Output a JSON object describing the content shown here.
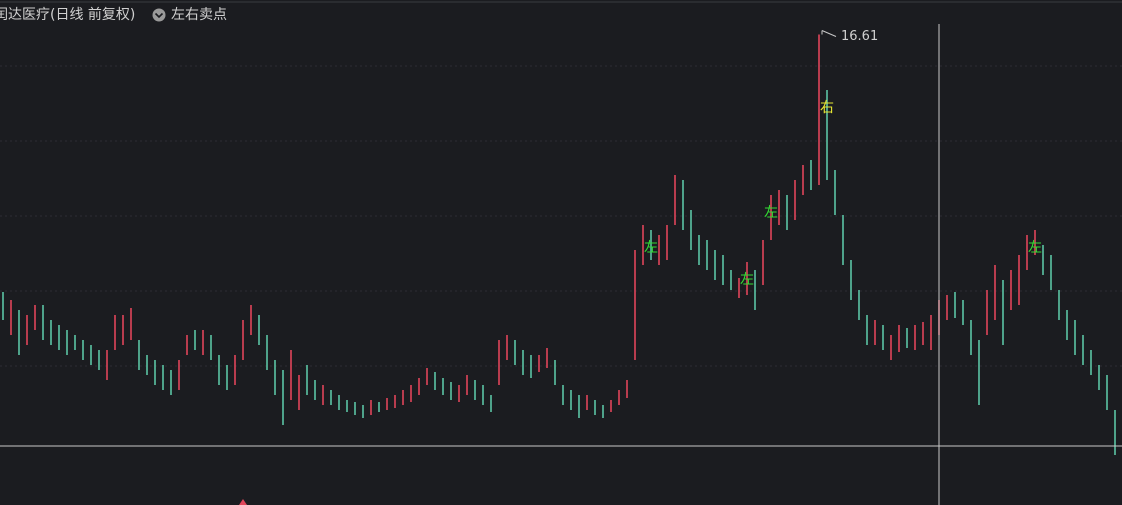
{
  "chart_data": {
    "type": "ohlc",
    "title": "闰达医疗(日线 前复权)",
    "subtitle": "左右卖点",
    "ylim": [
      7.2,
      17.3
    ],
    "up_color": "#e0455a",
    "down_color": "#5cc4a4",
    "highs": [
      11.46,
      11.3,
      11.1,
      11.0,
      11.2,
      11.2,
      10.9,
      10.8,
      10.7,
      10.6,
      10.5,
      10.4,
      10.3,
      10.3,
      11.0,
      11.0,
      11.14,
      10.5,
      10.2,
      10.1,
      10.0,
      9.9,
      10.1,
      10.6,
      10.7,
      10.7,
      10.6,
      10.2,
      10.0,
      10.2,
      10.9,
      11.2,
      11.0,
      10.6,
      10.1,
      9.9,
      10.3,
      9.8,
      10.0,
      9.7,
      9.6,
      9.5,
      9.4,
      9.3,
      9.26,
      9.2,
      9.3,
      9.26,
      9.34,
      9.4,
      9.5,
      9.6,
      9.74,
      9.94,
      9.86,
      9.74,
      9.66,
      9.6,
      9.8,
      9.7,
      9.6,
      9.4,
      10.5,
      10.6,
      10.5,
      10.3,
      10.2,
      10.2,
      10.34,
      10.1,
      9.6,
      9.5,
      9.4,
      9.4,
      9.3,
      9.2,
      9.3,
      9.5,
      9.7,
      12.3,
      12.8,
      12.7,
      12.6,
      12.8,
      13.8,
      13.7,
      13.1,
      12.6,
      12.5,
      12.3,
      12.2,
      11.9,
      11.74,
      12.06,
      11.9,
      12.5,
      13.4,
      13.5,
      13.4,
      13.7,
      14.0,
      14.1,
      16.61,
      15.5,
      13.9,
      13.0,
      12.1,
      11.5,
      11.0,
      10.9,
      10.8,
      10.6,
      10.8,
      10.74,
      10.8,
      10.86,
      11.0,
      11.3,
      11.4,
      11.46,
      11.3,
      10.9,
      10.5,
      11.5,
      12.0,
      11.7,
      11.9,
      12.2,
      12.6,
      12.7,
      12.4,
      12.2,
      11.5,
      11.1,
      10.9,
      10.6,
      10.3,
      10.0,
      9.8,
      9.1
    ],
    "lows": [
      10.9,
      10.6,
      10.2,
      10.4,
      10.7,
      10.5,
      10.4,
      10.3,
      10.2,
      10.3,
      10.1,
      10.0,
      9.9,
      9.7,
      10.3,
      10.4,
      10.5,
      9.9,
      9.8,
      9.6,
      9.5,
      9.4,
      9.5,
      10.2,
      10.3,
      10.2,
      10.1,
      9.6,
      9.5,
      9.6,
      10.1,
      10.6,
      10.4,
      9.9,
      9.4,
      8.8,
      9.3,
      9.1,
      9.4,
      9.3,
      9.2,
      9.2,
      9.1,
      9.06,
      9.0,
      8.94,
      9.0,
      9.06,
      9.1,
      9.14,
      9.2,
      9.26,
      9.4,
      9.6,
      9.5,
      9.4,
      9.3,
      9.26,
      9.4,
      9.3,
      9.2,
      9.06,
      9.6,
      10.1,
      10.0,
      9.8,
      9.74,
      9.86,
      9.94,
      9.6,
      9.2,
      9.1,
      8.94,
      9.1,
      9.0,
      8.94,
      9.06,
      9.2,
      9.34,
      10.1,
      12.0,
      12.1,
      12.0,
      12.1,
      12.8,
      12.7,
      12.3,
      12.0,
      11.9,
      11.7,
      11.6,
      11.5,
      11.34,
      11.4,
      11.1,
      11.6,
      12.5,
      12.8,
      12.7,
      12.9,
      13.4,
      13.5,
      13.6,
      13.7,
      13.0,
      12.0,
      11.3,
      10.9,
      10.4,
      10.4,
      10.3,
      10.1,
      10.26,
      10.34,
      10.3,
      10.4,
      10.3,
      10.6,
      10.9,
      10.94,
      10.8,
      10.2,
      9.2,
      10.6,
      10.9,
      10.4,
      11.1,
      11.2,
      11.9,
      12.2,
      11.8,
      11.5,
      10.9,
      10.5,
      10.2,
      10.0,
      9.8,
      9.5,
      9.1,
      8.2
    ],
    "up": [
      false,
      true,
      false,
      true,
      true,
      false,
      false,
      false,
      false,
      false,
      false,
      false,
      false,
      true,
      true,
      true,
      true,
      false,
      false,
      false,
      false,
      false,
      true,
      true,
      false,
      true,
      false,
      false,
      false,
      true,
      true,
      true,
      false,
      false,
      false,
      false,
      true,
      true,
      false,
      false,
      true,
      false,
      false,
      false,
      false,
      false,
      true,
      false,
      true,
      true,
      true,
      true,
      true,
      true,
      false,
      false,
      false,
      true,
      true,
      false,
      false,
      false,
      true,
      true,
      false,
      false,
      false,
      true,
      true,
      false,
      false,
      false,
      false,
      true,
      false,
      false,
      true,
      true,
      true,
      true,
      true,
      false,
      true,
      true,
      true,
      false,
      false,
      false,
      false,
      false,
      false,
      false,
      true,
      true,
      false,
      true,
      true,
      true,
      false,
      true,
      true,
      false,
      true,
      false,
      false,
      false,
      false,
      false,
      false,
      true,
      false,
      true,
      true,
      false,
      true,
      true,
      true,
      true,
      true,
      false,
      false,
      false,
      false,
      true,
      true,
      false,
      true,
      true,
      true,
      true,
      false,
      false,
      false,
      false,
      false,
      false,
      false,
      false,
      false,
      false
    ],
    "signals": [
      {
        "index": 81,
        "label": "左",
        "color": "#33dd33"
      },
      {
        "index": 93,
        "label": "左",
        "color": "#33dd33"
      },
      {
        "index": 96,
        "label": "左",
        "color": "#33dd33"
      },
      {
        "index": 103,
        "label": "右",
        "color": "#e6e633"
      },
      {
        "index": 129,
        "label": "左",
        "color": "#33dd33"
      }
    ],
    "max_index": 102
  }
}
